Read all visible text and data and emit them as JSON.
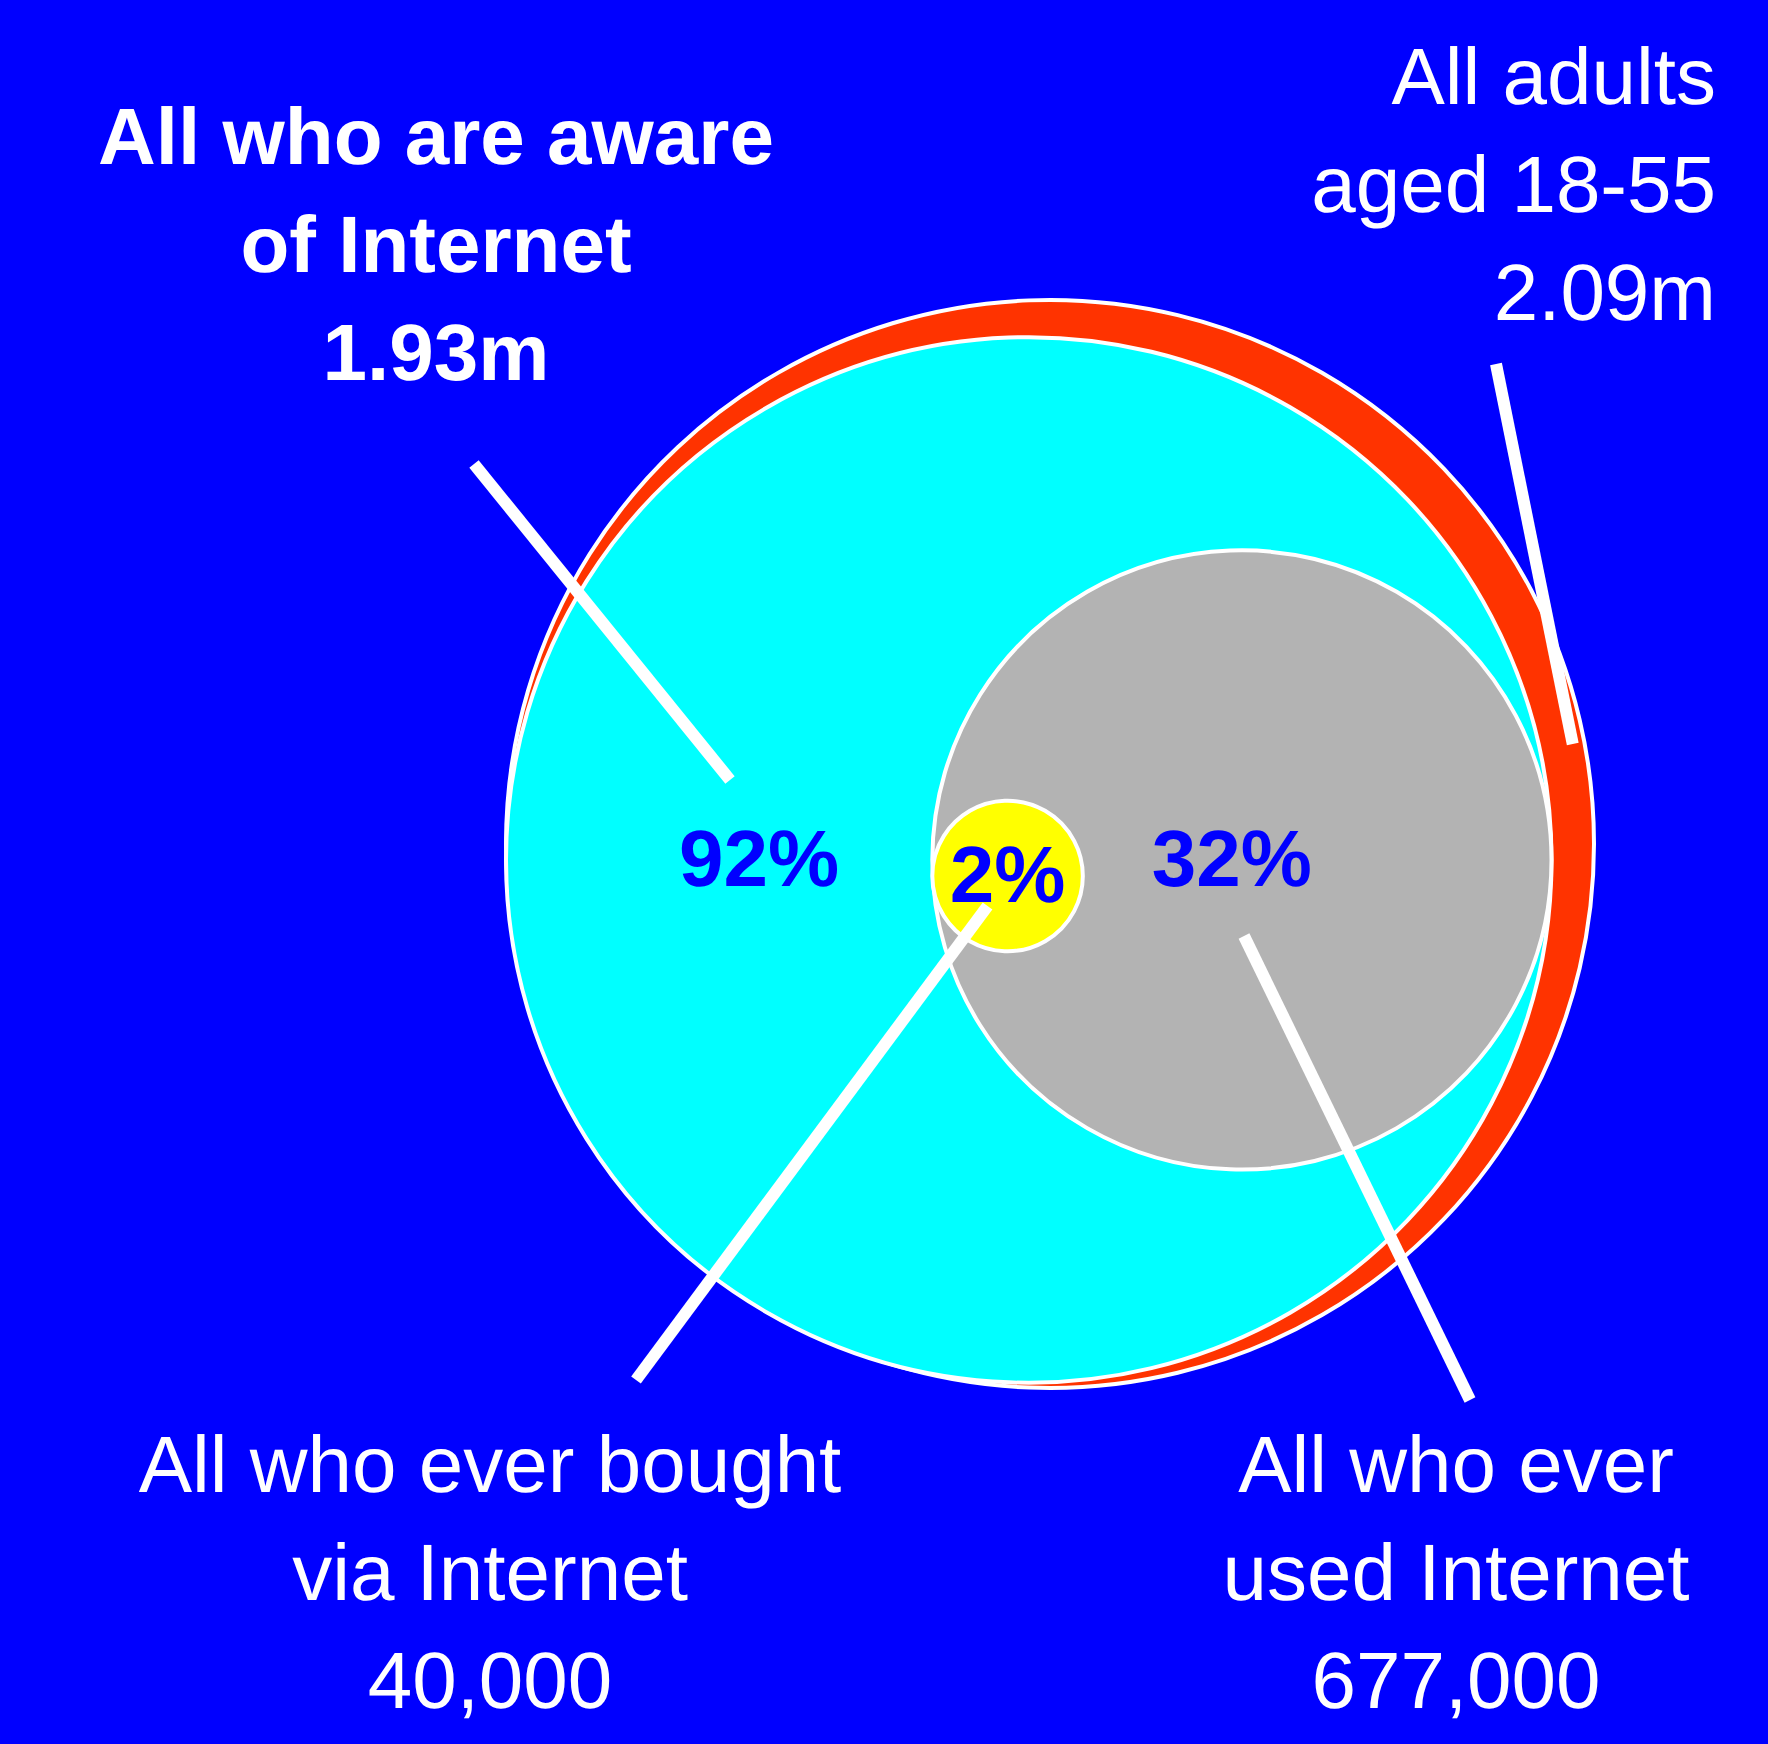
{
  "chart_data": {
    "type": "other",
    "categories": [
      "All adults\naged 18-55",
      "All who are aware\nof Internet",
      "All who ever\nused Internet",
      "All who ever bought\nvia Internet"
    ],
    "values": [
      2090000,
      1930000,
      677000,
      40000
    ],
    "value_labels": [
      "2.09m",
      "1.93m",
      "677,000",
      "40,000"
    ],
    "colors": [
      "#ff3300",
      "#00ffff",
      "#b3b3b3",
      "#ffff00"
    ],
    "annotations": [
      "92%",
      "32%",
      "2%"
    ]
  }
}
